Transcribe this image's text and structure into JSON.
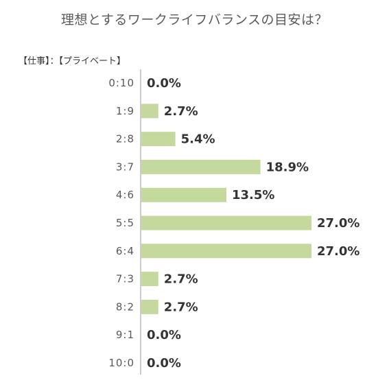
{
  "chart_data": {
    "type": "bar",
    "orientation": "horizontal",
    "title": "理想とするワークライフバランスの目安は？",
    "axis_note": "【仕事】：【プライベート】",
    "categories": [
      "0:10",
      "1:9",
      "2:8",
      "3:7",
      "4:6",
      "5:5",
      "6:4",
      "7:3",
      "8:2",
      "9:1",
      "10:0"
    ],
    "values": [
      0.0,
      2.7,
      5.4,
      18.9,
      13.5,
      27.0,
      27.0,
      2.7,
      2.7,
      0.0,
      0.0
    ],
    "value_labels": [
      "0.0%",
      "2.7%",
      "5.4%",
      "18.9%",
      "13.5%",
      "27.0%",
      "27.0%",
      "2.7%",
      "2.7%",
      "0.0%",
      "0.0%"
    ],
    "xlim": [
      0,
      27.0
    ],
    "bar_color": "#c5d89e",
    "axis_color": "#999999"
  }
}
